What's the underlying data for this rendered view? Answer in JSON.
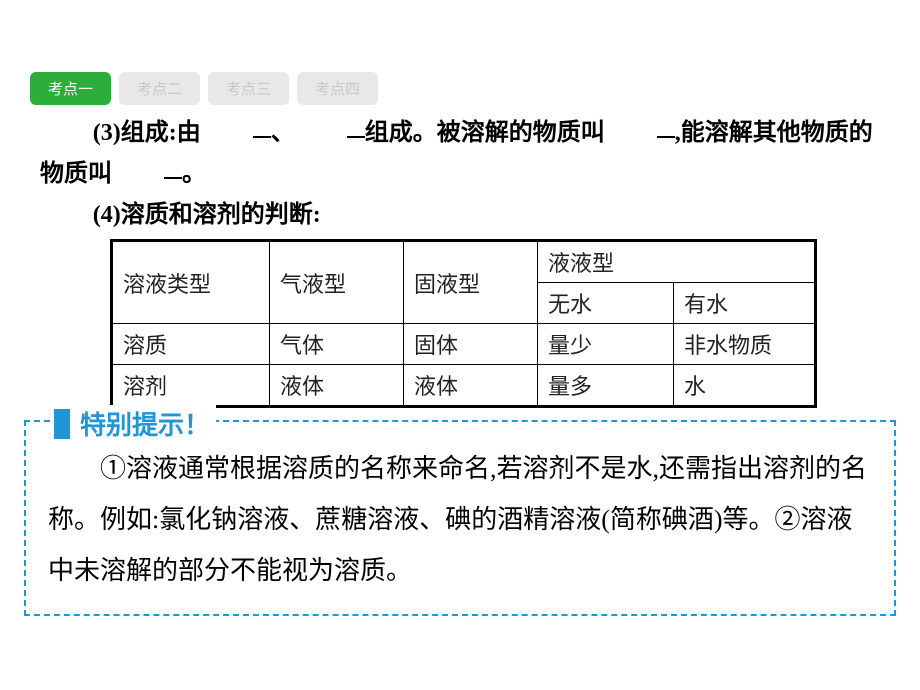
{
  "tabs": [
    {
      "label": "考点一",
      "active": true
    },
    {
      "label": "考点二",
      "active": false
    },
    {
      "label": "考点三",
      "active": false
    },
    {
      "label": "考点四",
      "active": false
    }
  ],
  "para3": {
    "prefix": "(3)组成:由",
    "sep": "、",
    "mid1": "组成。被溶解的物质叫",
    "mid2": ",能溶解其他物质的物质叫",
    "end": "。"
  },
  "para4": "(4)溶质和溶剂的判断:",
  "table": {
    "r0c0": "溶液类型",
    "r0c1": "气液型",
    "r0c2": "固液型",
    "r0c3": "液液型",
    "r1c3": "无水",
    "r1c4": "有水",
    "r2c0": "溶质",
    "r2c1": "气体",
    "r2c2": "固体",
    "r2c3": "量少",
    "r2c4": "非水物质",
    "r3c0": "溶剂",
    "r3c1": "液体",
    "r3c2": "液体",
    "r3c3": "量多",
    "r3c4": "水"
  },
  "hint": {
    "title": "特别提示！",
    "body": "①溶液通常根据溶质的名称来命名,若溶剂不是水,还需指出溶剂的名称。例如:氯化钠溶液、蔗糖溶液、碘的酒精溶液(简称碘酒)等。②溶液中未溶解的部分不能视为溶质。"
  },
  "colors": {
    "tab_active_bg": "#2dae3a",
    "tab_active_text": "#ffffff",
    "tab_inactive_bg": "#e8e8e8",
    "tab_inactive_text": "#c8c8c8",
    "hint_border": "#2196d6",
    "text": "#000000"
  }
}
